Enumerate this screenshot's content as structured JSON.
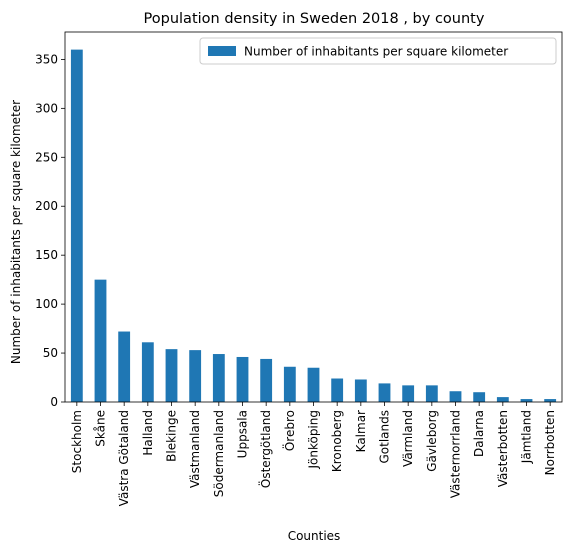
{
  "chart_data": {
    "type": "bar",
    "title": "Population density in Sweden 2018 , by county",
    "xlabel": "Counties",
    "ylabel": "Number of inhabitants per square kilometer",
    "categories": [
      "Stockholm",
      "Skåne",
      "Västra Götaland",
      "Halland",
      "Blekinge",
      "Västmanland",
      "Södermanland",
      "Uppsala",
      "Östergötland",
      "Örebro",
      "Jönköping",
      "Kronoberg",
      "Kalmar",
      "Gotlands",
      "Värmland",
      "Gävleborg",
      "Västernorrland",
      "Dalarna",
      "Västerbotten",
      "Jämtland",
      "Norrbotten"
    ],
    "series": [
      {
        "name": "Number of inhabitants per square kilometer",
        "values": [
          360,
          125,
          72,
          61,
          54,
          53,
          49,
          46,
          44,
          36,
          35,
          24,
          23,
          19,
          17,
          17,
          11,
          10,
          5,
          3,
          3
        ]
      }
    ],
    "ylim": [
      0,
      378
    ],
    "yticks": [
      0,
      50,
      100,
      150,
      200,
      250,
      300,
      350
    ],
    "legend_position": "top-right",
    "grid": false,
    "bar_color": "#1f77b4"
  }
}
